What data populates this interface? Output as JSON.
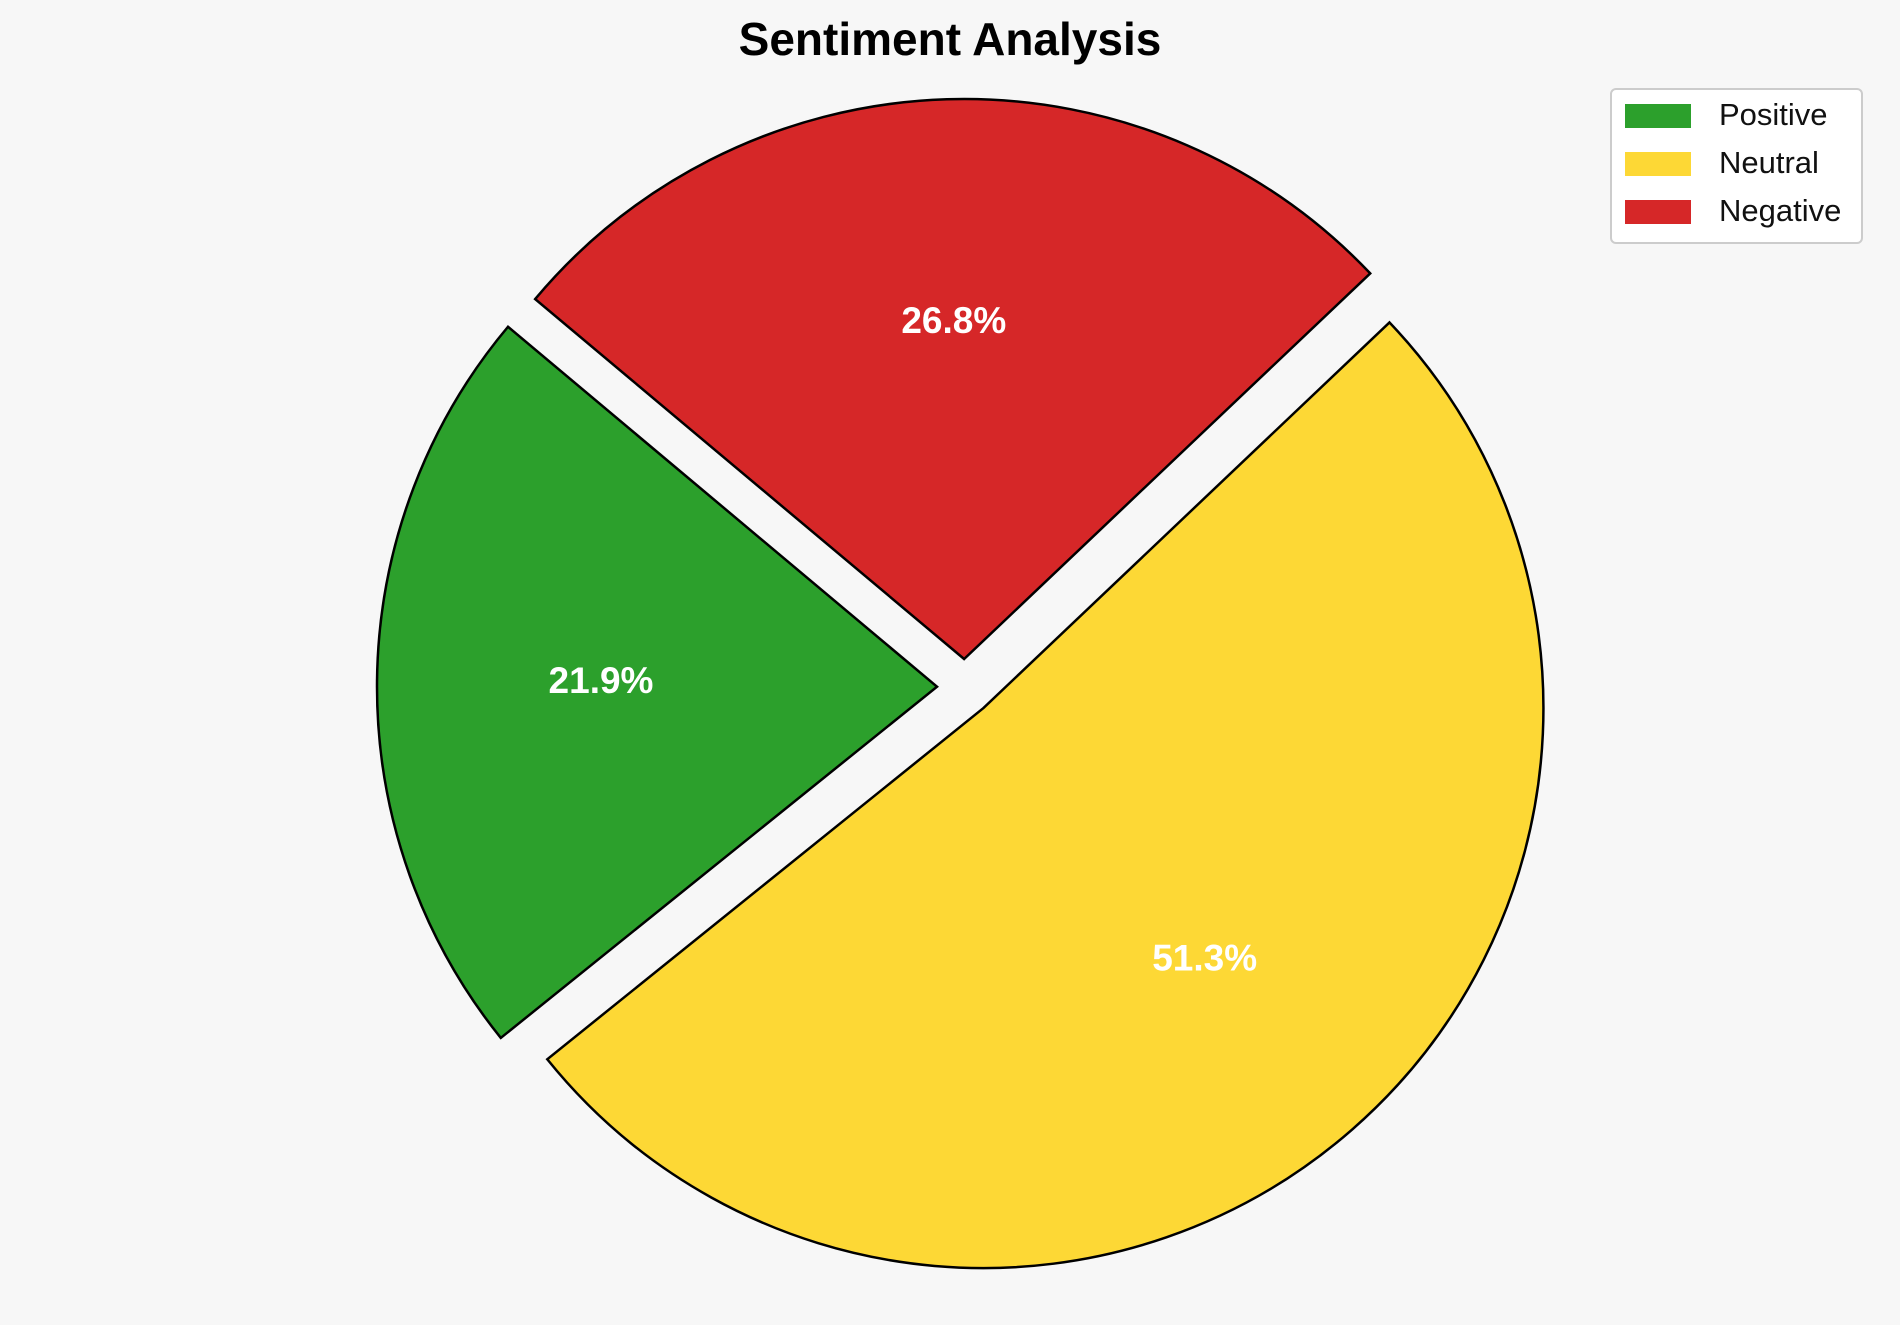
{
  "chart_data": {
    "type": "pie",
    "title": "Sentiment Analysis",
    "slices": [
      {
        "label": "Positive",
        "value": 21.9,
        "display": "21.9%",
        "color": "#2ca02c"
      },
      {
        "label": "Neutral",
        "value": 51.3,
        "display": "51.3%",
        "color": "#fdd835"
      },
      {
        "label": "Negative",
        "value": 26.8,
        "display": "26.8%",
        "color": "#d62728"
      }
    ],
    "legend_position": "top-right",
    "exploded": true,
    "edge_color": "#000000",
    "label_color": "#ffffff"
  }
}
